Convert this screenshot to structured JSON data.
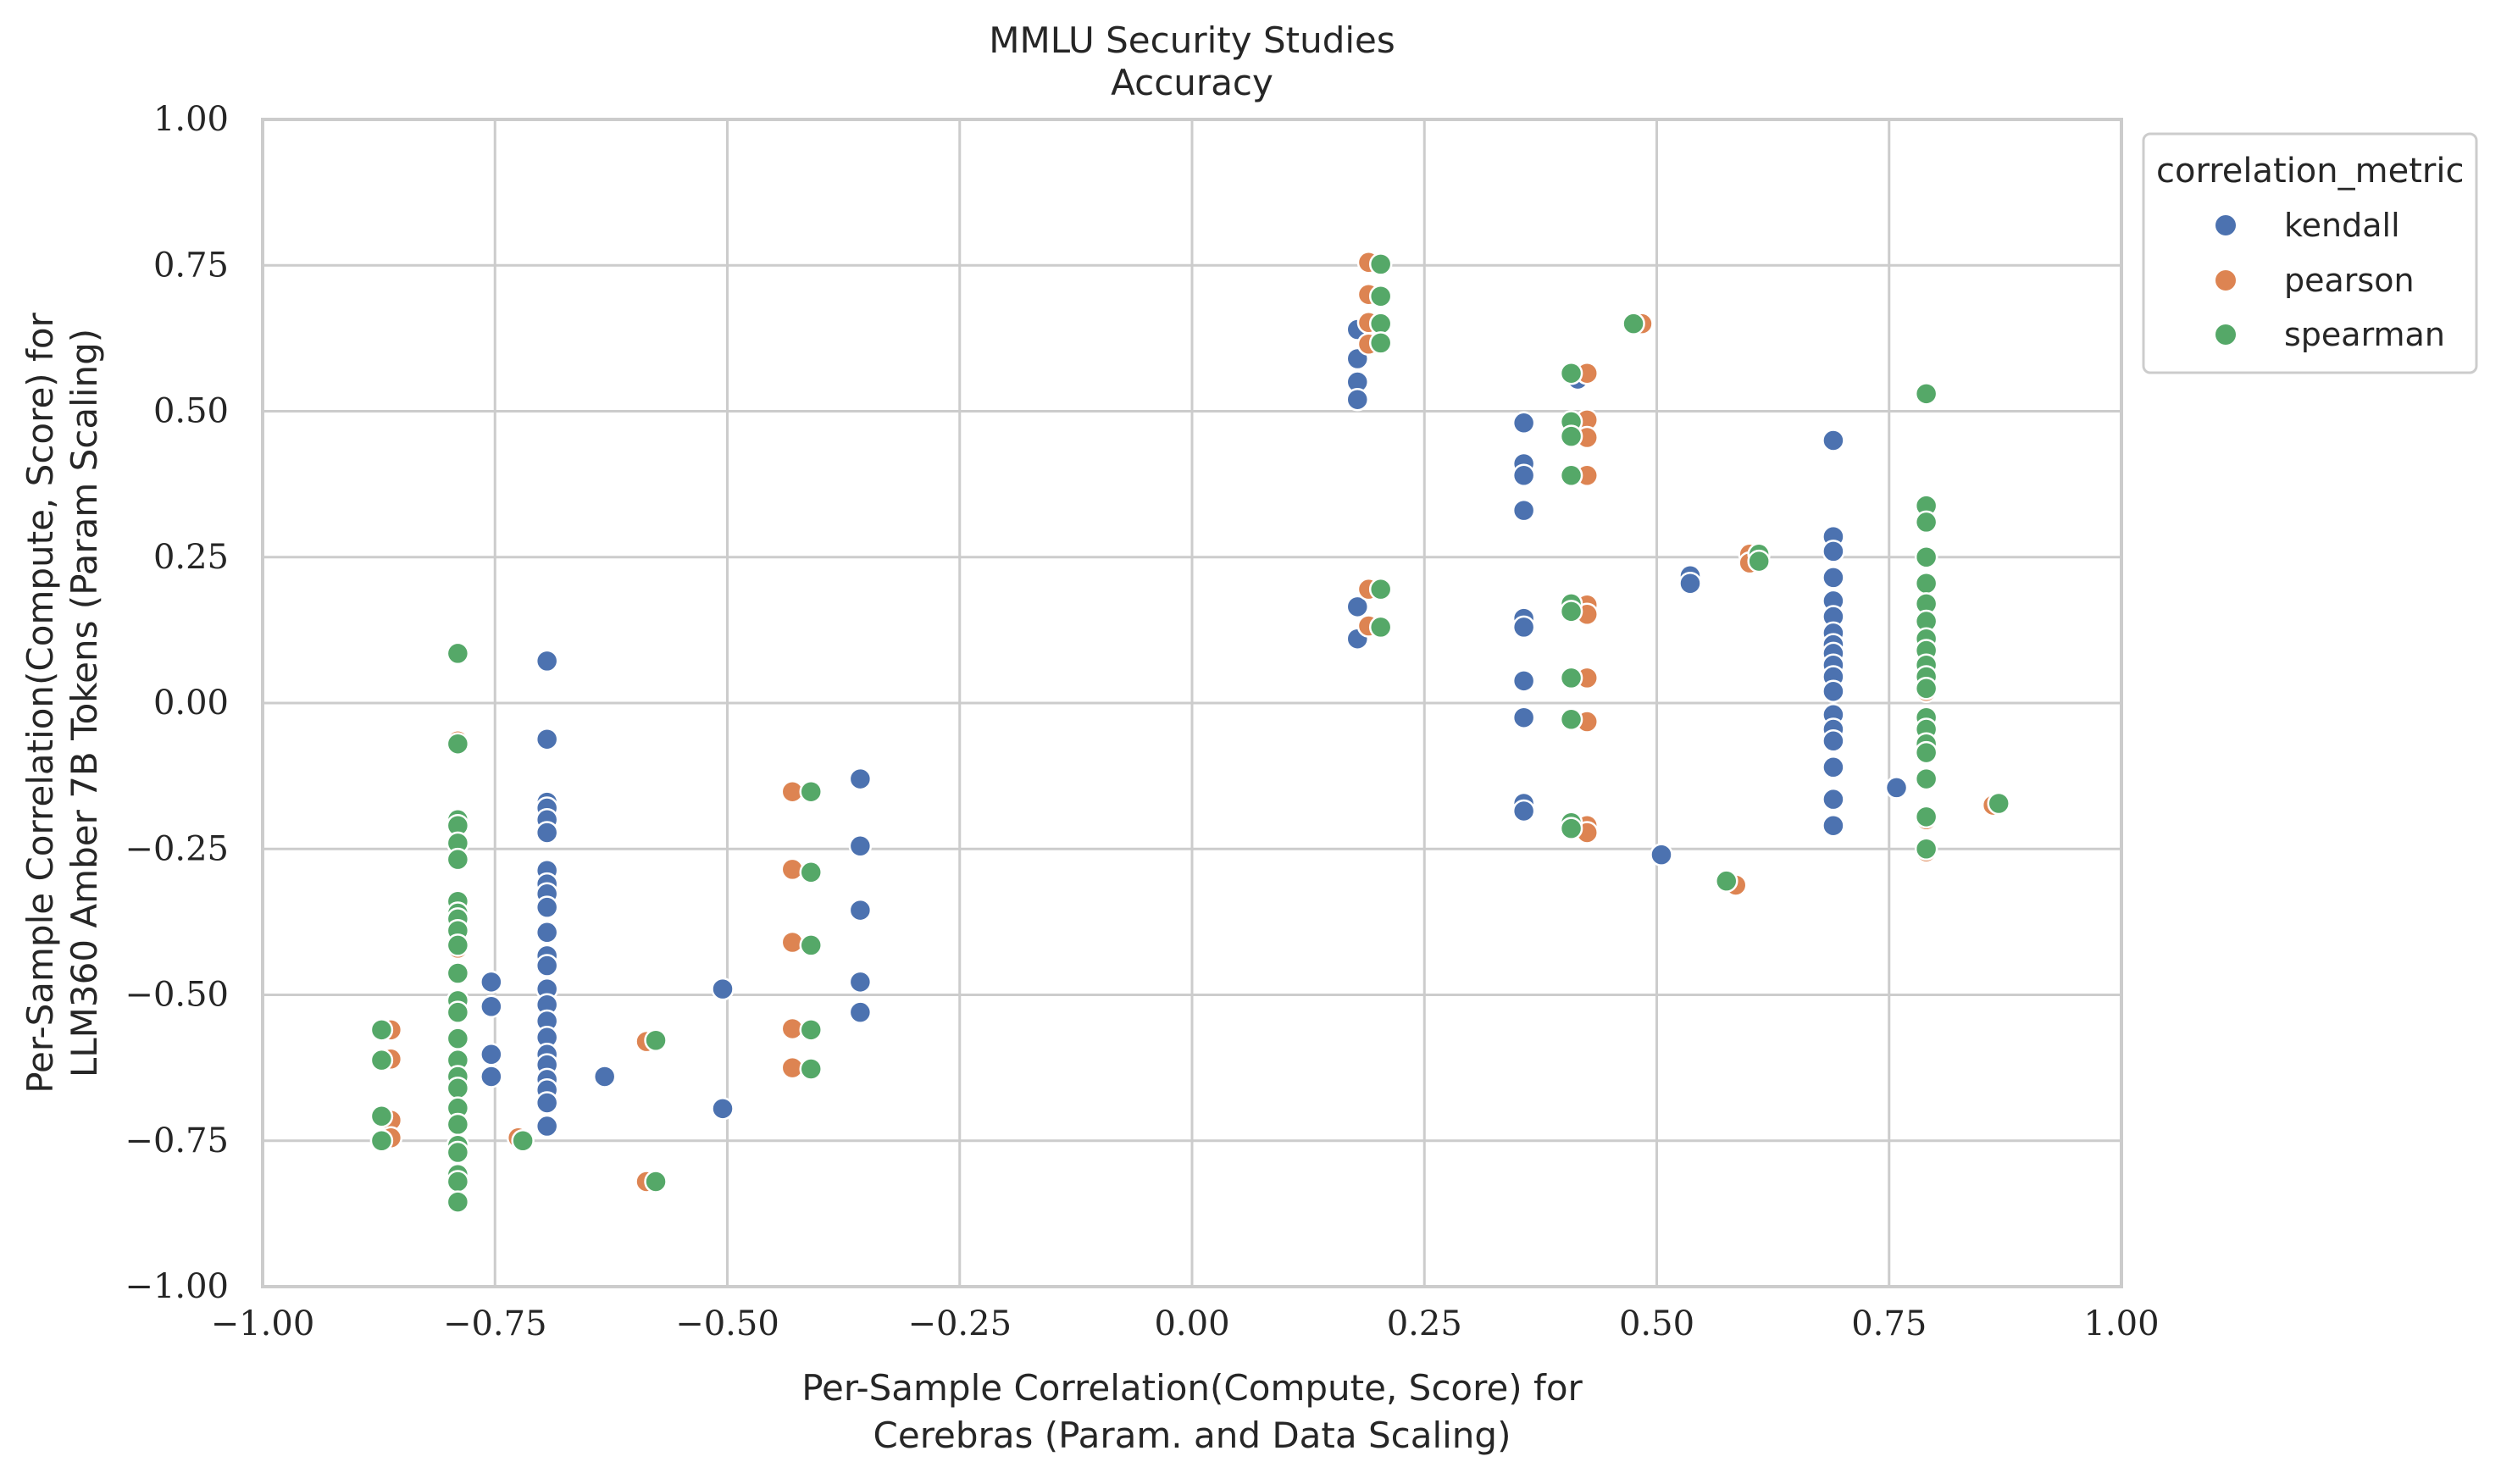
{
  "chart_data": {
    "type": "scatter",
    "title": [
      "MMLU Security Studies",
      "Accuracy"
    ],
    "xlabel": [
      "Per-Sample Correlation(Compute, Score) for",
      "Cerebras (Param. and Data Scaling)"
    ],
    "ylabel": [
      "Per-Sample Correlation(Compute, Score) for",
      "LLM360 Amber 7B Tokens (Param Scaling)"
    ],
    "xlim": [
      -1.0,
      1.0
    ],
    "ylim": [
      -1.0,
      1.0
    ],
    "xticks": [
      "−1.00",
      "−0.75",
      "−0.50",
      "−0.25",
      "0.00",
      "0.25",
      "0.50",
      "0.75",
      "1.00"
    ],
    "yticks": [
      "−1.00",
      "−0.75",
      "−0.50",
      "−0.25",
      "0.00",
      "0.25",
      "0.50",
      "0.75",
      "1.00"
    ],
    "xtick_values": [
      -1.0,
      -0.75,
      -0.5,
      -0.25,
      0.0,
      0.25,
      0.5,
      0.75,
      1.0
    ],
    "ytick_values": [
      -1.0,
      -0.75,
      -0.5,
      -0.25,
      0.0,
      0.25,
      0.5,
      0.75,
      1.0
    ],
    "grid": true,
    "legend": {
      "title": "correlation_metric",
      "position": "outside-right-top",
      "entries": [
        "kendall",
        "pearson",
        "spearman"
      ]
    },
    "series": [
      {
        "name": "kendall",
        "color": "#4c72b0",
        "points": [
          [
            -0.754,
            -0.478
          ],
          [
            -0.754,
            -0.52
          ],
          [
            -0.754,
            -0.602
          ],
          [
            -0.754,
            -0.64
          ],
          [
            -0.694,
            0.072
          ],
          [
            -0.694,
            -0.062
          ],
          [
            -0.694,
            -0.17
          ],
          [
            -0.694,
            -0.18
          ],
          [
            -0.694,
            -0.2
          ],
          [
            -0.694,
            -0.222
          ],
          [
            -0.694,
            -0.287
          ],
          [
            -0.694,
            -0.31
          ],
          [
            -0.694,
            -0.327
          ],
          [
            -0.694,
            -0.35
          ],
          [
            -0.694,
            -0.393
          ],
          [
            -0.694,
            -0.433
          ],
          [
            -0.694,
            -0.45
          ],
          [
            -0.694,
            -0.49
          ],
          [
            -0.694,
            -0.517
          ],
          [
            -0.694,
            -0.545
          ],
          [
            -0.694,
            -0.573
          ],
          [
            -0.694,
            -0.602
          ],
          [
            -0.694,
            -0.62
          ],
          [
            -0.694,
            -0.645
          ],
          [
            -0.694,
            -0.663
          ],
          [
            -0.694,
            -0.685
          ],
          [
            -0.694,
            -0.725
          ],
          [
            -0.632,
            -0.64
          ],
          [
            -0.505,
            -0.49
          ],
          [
            -0.505,
            -0.695
          ],
          [
            -0.357,
            -0.13
          ],
          [
            -0.357,
            -0.245
          ],
          [
            -0.357,
            -0.355
          ],
          [
            -0.357,
            -0.478
          ],
          [
            -0.357,
            -0.53
          ],
          [
            0.178,
            0.64
          ],
          [
            0.178,
            0.59
          ],
          [
            0.178,
            0.55
          ],
          [
            0.178,
            0.52
          ],
          [
            0.178,
            0.165
          ],
          [
            0.178,
            0.11
          ],
          [
            0.357,
            0.48
          ],
          [
            0.357,
            0.41
          ],
          [
            0.357,
            0.39
          ],
          [
            0.357,
            0.33
          ],
          [
            0.357,
            0.145
          ],
          [
            0.357,
            0.13
          ],
          [
            0.357,
            0.038
          ],
          [
            0.357,
            -0.025
          ],
          [
            0.357,
            -0.172
          ],
          [
            0.357,
            -0.185
          ],
          [
            0.415,
            0.555
          ],
          [
            0.505,
            -0.26
          ],
          [
            0.536,
            0.218
          ],
          [
            0.536,
            0.205
          ],
          [
            0.69,
            0.45
          ],
          [
            0.69,
            0.285
          ],
          [
            0.69,
            0.26
          ],
          [
            0.69,
            0.215
          ],
          [
            0.69,
            0.175
          ],
          [
            0.69,
            0.148
          ],
          [
            0.69,
            0.12
          ],
          [
            0.69,
            0.1
          ],
          [
            0.69,
            0.085
          ],
          [
            0.69,
            0.065
          ],
          [
            0.69,
            0.045
          ],
          [
            0.69,
            0.02
          ],
          [
            0.69,
            -0.02
          ],
          [
            0.69,
            -0.045
          ],
          [
            0.69,
            -0.065
          ],
          [
            0.69,
            -0.11
          ],
          [
            0.69,
            -0.165
          ],
          [
            0.69,
            -0.21
          ],
          [
            0.758,
            -0.145
          ]
        ]
      },
      {
        "name": "pearson",
        "color": "#dd8452",
        "points": [
          [
            -0.862,
            -0.56
          ],
          [
            -0.862,
            -0.61
          ],
          [
            -0.862,
            -0.715
          ],
          [
            -0.862,
            -0.745
          ],
          [
            -0.79,
            0.085
          ],
          [
            -0.79,
            -0.065
          ],
          [
            -0.79,
            -0.2
          ],
          [
            -0.79,
            -0.34
          ],
          [
            -0.79,
            -0.42
          ],
          [
            -0.79,
            -0.52
          ],
          [
            -0.79,
            -0.65
          ],
          [
            -0.79,
            -0.72
          ],
          [
            -0.79,
            -0.82
          ],
          [
            -0.725,
            -0.745
          ],
          [
            -0.587,
            -0.58
          ],
          [
            -0.587,
            -0.82
          ],
          [
            -0.43,
            -0.152
          ],
          [
            -0.43,
            -0.285
          ],
          [
            -0.43,
            -0.41
          ],
          [
            -0.43,
            -0.558
          ],
          [
            -0.43,
            -0.625
          ],
          [
            0.19,
            0.755
          ],
          [
            0.19,
            0.7
          ],
          [
            0.19,
            0.652
          ],
          [
            0.19,
            0.615
          ],
          [
            0.19,
            0.195
          ],
          [
            0.19,
            0.132
          ],
          [
            0.425,
            0.565
          ],
          [
            0.425,
            0.485
          ],
          [
            0.425,
            0.455
          ],
          [
            0.425,
            0.39
          ],
          [
            0.425,
            0.168
          ],
          [
            0.425,
            0.152
          ],
          [
            0.425,
            0.043
          ],
          [
            0.425,
            -0.032
          ],
          [
            0.425,
            -0.21
          ],
          [
            0.425,
            -0.222
          ],
          [
            0.484,
            0.65
          ],
          [
            0.585,
            -0.312
          ],
          [
            0.6,
            0.255
          ],
          [
            0.6,
            0.24
          ],
          [
            0.79,
            0.53
          ],
          [
            0.79,
            0.25
          ],
          [
            0.79,
            0.1
          ],
          [
            0.79,
            0.02
          ],
          [
            0.79,
            -0.08
          ],
          [
            0.79,
            -0.2
          ],
          [
            0.79,
            -0.255
          ],
          [
            0.862,
            -0.175
          ]
        ]
      },
      {
        "name": "spearman",
        "color": "#55a868",
        "points": [
          [
            -0.872,
            -0.56
          ],
          [
            -0.872,
            -0.612
          ],
          [
            -0.872,
            -0.708
          ],
          [
            -0.872,
            -0.75
          ],
          [
            -0.79,
            0.085
          ],
          [
            -0.79,
            -0.07
          ],
          [
            -0.79,
            -0.2
          ],
          [
            -0.79,
            -0.21
          ],
          [
            -0.79,
            -0.24
          ],
          [
            -0.79,
            -0.268
          ],
          [
            -0.79,
            -0.34
          ],
          [
            -0.79,
            -0.36
          ],
          [
            -0.79,
            -0.37
          ],
          [
            -0.79,
            -0.39
          ],
          [
            -0.79,
            -0.415
          ],
          [
            -0.79,
            -0.463
          ],
          [
            -0.79,
            -0.51
          ],
          [
            -0.79,
            -0.53
          ],
          [
            -0.79,
            -0.575
          ],
          [
            -0.79,
            -0.612
          ],
          [
            -0.79,
            -0.64
          ],
          [
            -0.79,
            -0.66
          ],
          [
            -0.79,
            -0.694
          ],
          [
            -0.79,
            -0.722
          ],
          [
            -0.79,
            -0.758
          ],
          [
            -0.79,
            -0.77
          ],
          [
            -0.79,
            -0.808
          ],
          [
            -0.79,
            -0.82
          ],
          [
            -0.79,
            -0.855
          ],
          [
            -0.72,
            -0.75
          ],
          [
            -0.577,
            -0.578
          ],
          [
            -0.577,
            -0.82
          ],
          [
            -0.41,
            -0.152
          ],
          [
            -0.41,
            -0.29
          ],
          [
            -0.41,
            -0.415
          ],
          [
            -0.41,
            -0.56
          ],
          [
            -0.41,
            -0.627
          ],
          [
            0.203,
            0.752
          ],
          [
            0.203,
            0.697
          ],
          [
            0.203,
            0.65
          ],
          [
            0.203,
            0.617
          ],
          [
            0.203,
            0.195
          ],
          [
            0.203,
            0.13
          ],
          [
            0.408,
            0.565
          ],
          [
            0.408,
            0.482
          ],
          [
            0.408,
            0.457
          ],
          [
            0.408,
            0.39
          ],
          [
            0.408,
            0.17
          ],
          [
            0.408,
            0.157
          ],
          [
            0.408,
            0.043
          ],
          [
            0.408,
            -0.028
          ],
          [
            0.408,
            -0.205
          ],
          [
            0.408,
            -0.215
          ],
          [
            0.475,
            0.65
          ],
          [
            0.575,
            -0.305
          ],
          [
            0.61,
            0.255
          ],
          [
            0.61,
            0.243
          ],
          [
            0.79,
            0.53
          ],
          [
            0.79,
            0.338
          ],
          [
            0.79,
            0.31
          ],
          [
            0.79,
            0.25
          ],
          [
            0.79,
            0.205
          ],
          [
            0.79,
            0.17
          ],
          [
            0.79,
            0.14
          ],
          [
            0.79,
            0.11
          ],
          [
            0.79,
            0.09
          ],
          [
            0.79,
            0.065
          ],
          [
            0.79,
            0.045
          ],
          [
            0.79,
            0.025
          ],
          [
            0.79,
            -0.025
          ],
          [
            0.79,
            -0.045
          ],
          [
            0.79,
            -0.07
          ],
          [
            0.79,
            -0.085
          ],
          [
            0.79,
            -0.13
          ],
          [
            0.79,
            -0.195
          ],
          [
            0.79,
            -0.25
          ],
          [
            0.868,
            -0.172
          ]
        ]
      }
    ]
  }
}
